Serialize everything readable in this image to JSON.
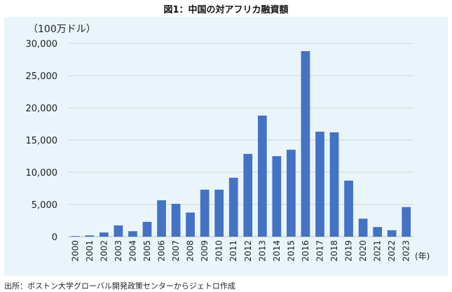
{
  "title": "図1：中国の対アフリカ融資額",
  "source": "出所：ボストン大学グローバル開発政策センターからジェトロ作成",
  "chart_data": {
    "type": "bar",
    "title": "図1：中国の対アフリカ融資額",
    "ylabel": "（100万ドル）",
    "xlabel": "(年)",
    "ylim": [
      0,
      30000
    ],
    "yticks": [
      "0",
      "5,000",
      "10,000",
      "15,000",
      "20,000",
      "25,000",
      "30,000"
    ],
    "grid": true,
    "legend": "none",
    "bar_color": "#4472c4",
    "categories": [
      "2000",
      "2001",
      "2002",
      "2003",
      "2004",
      "2005",
      "2006",
      "2007",
      "2008",
      "2009",
      "2010",
      "2011",
      "2012",
      "2013",
      "2014",
      "2015",
      "2016",
      "2017",
      "2018",
      "2019",
      "2020",
      "2021",
      "2022",
      "2023"
    ],
    "values": [
      100,
      200,
      650,
      1750,
      850,
      2300,
      5650,
      5100,
      3750,
      7300,
      7300,
      9150,
      12850,
      18800,
      12500,
      13500,
      28800,
      16300,
      16200,
      8700,
      2800,
      1500,
      1000,
      4600
    ]
  }
}
